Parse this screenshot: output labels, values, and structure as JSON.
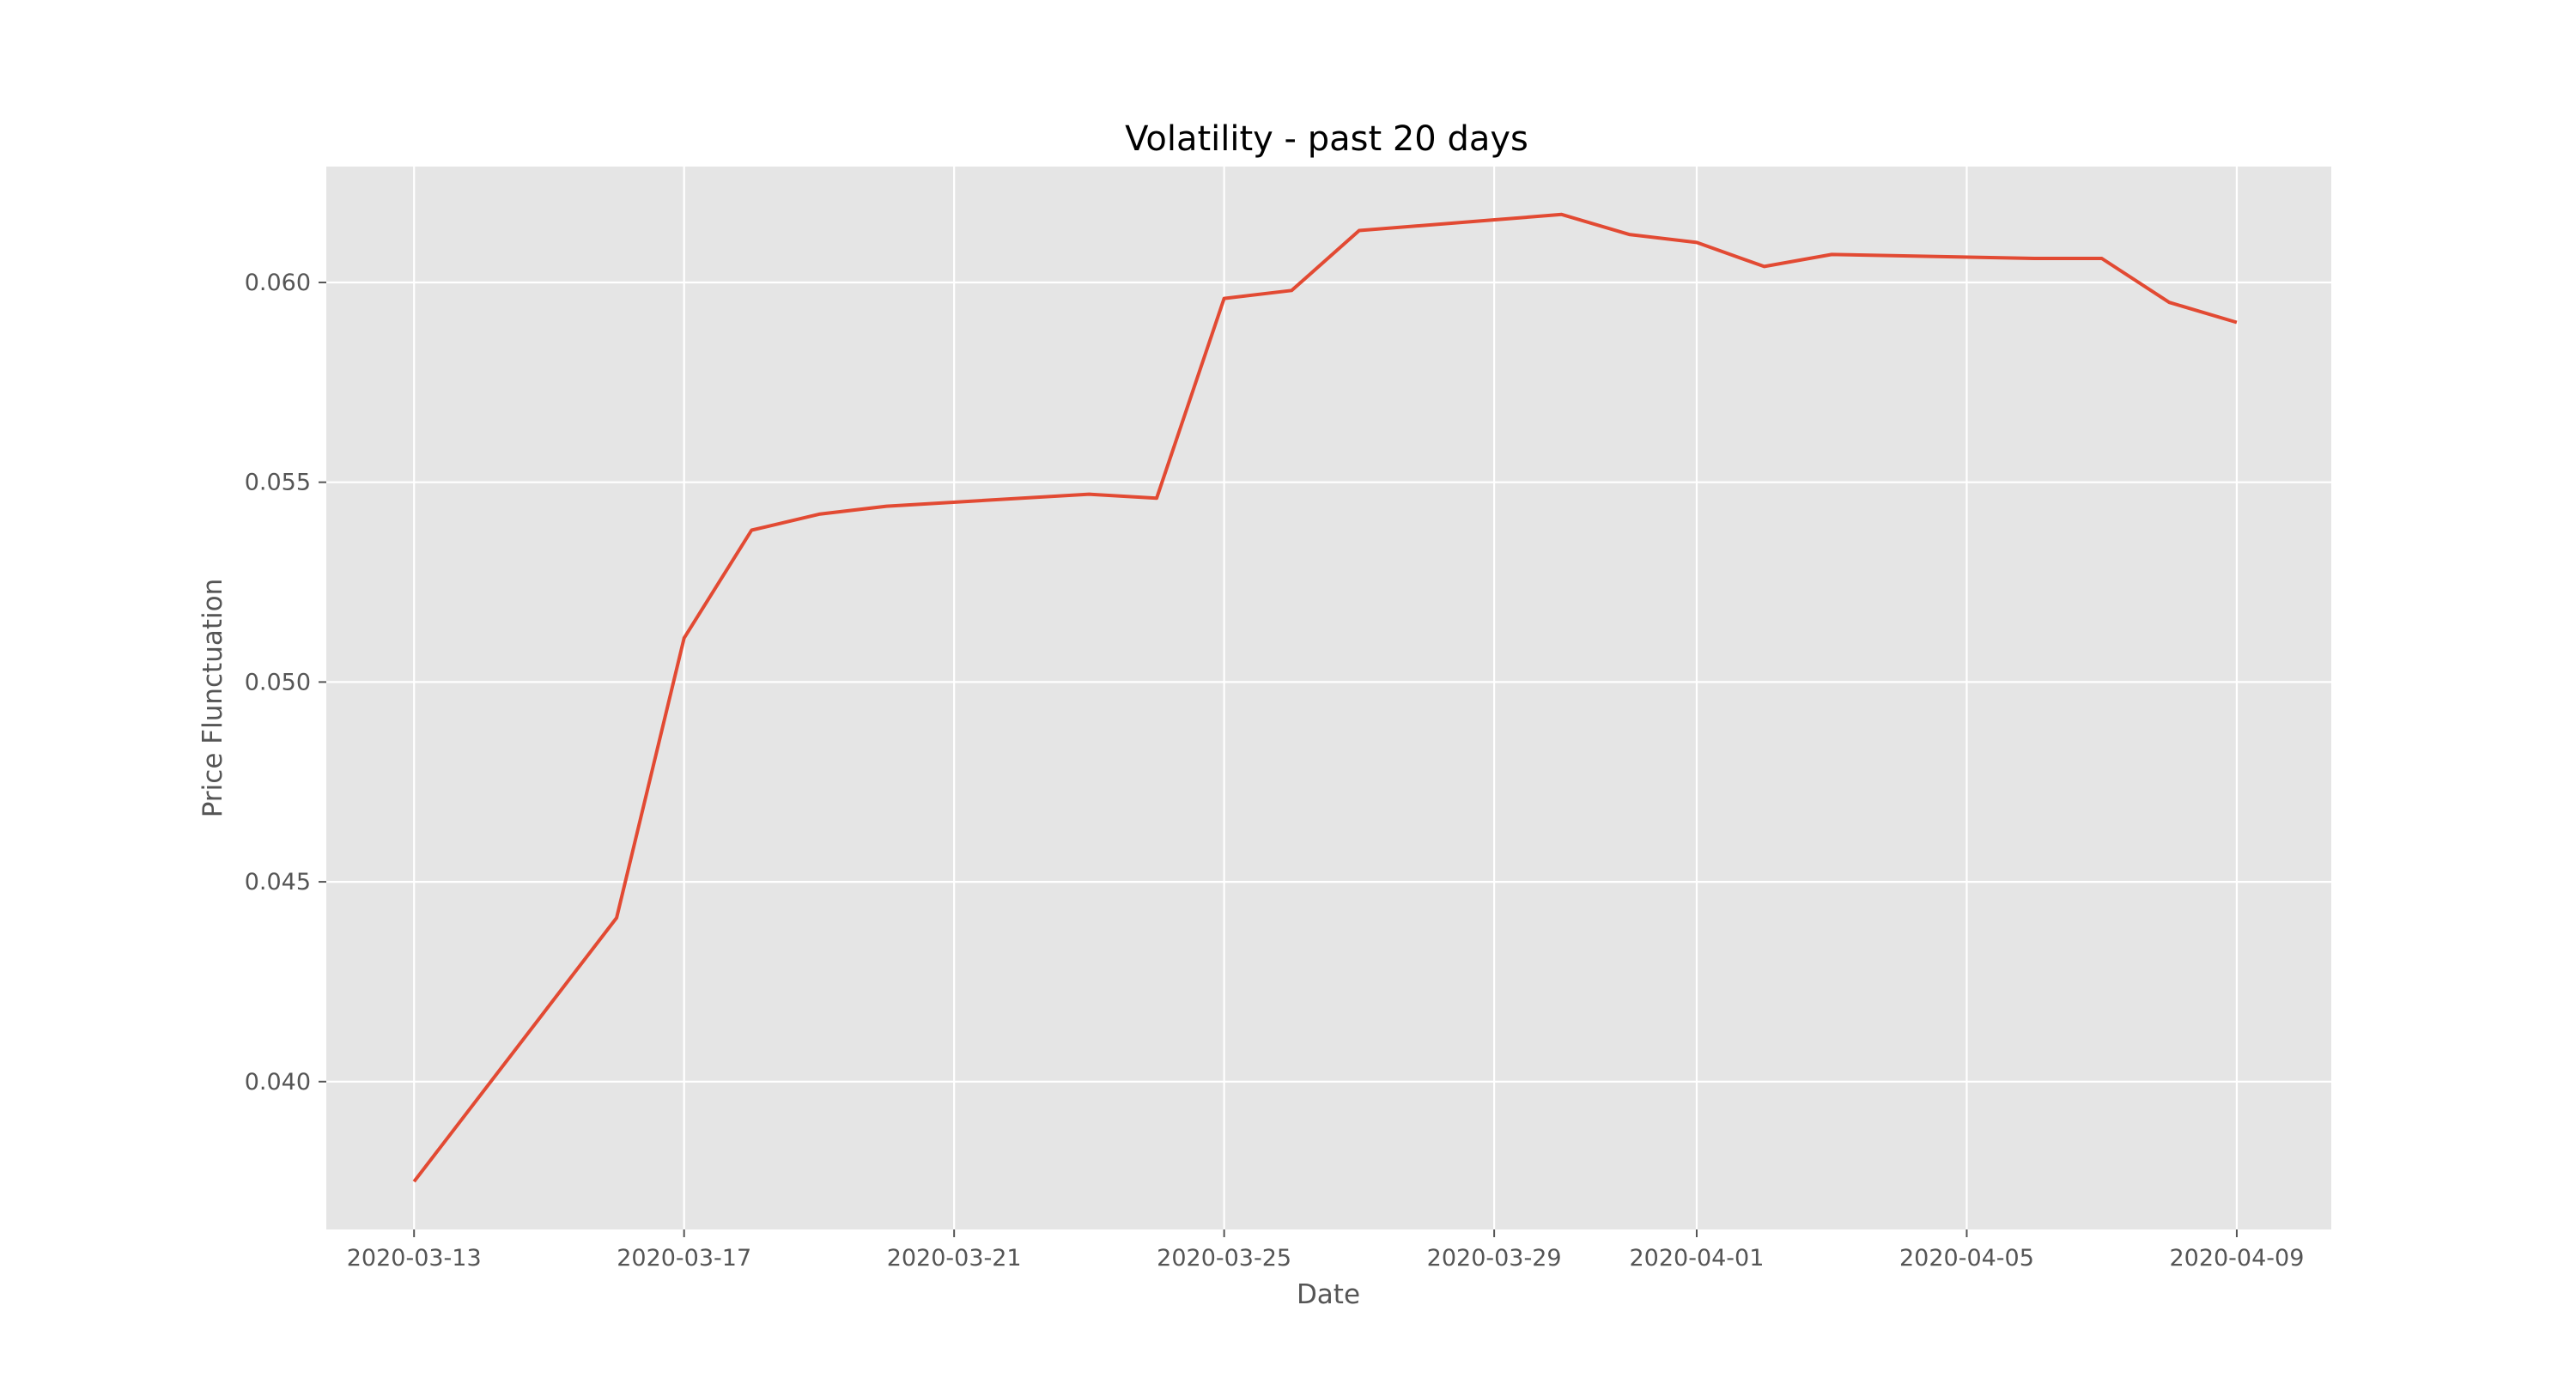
{
  "chart_data": {
    "type": "line",
    "title": "Volatility - past 20 days",
    "xlabel": "Date",
    "ylabel": "Price Flunctuation",
    "x_ticks": [
      "2020-03-13",
      "2020-03-17",
      "2020-03-21",
      "2020-03-25",
      "2020-03-29",
      "2020-04-01",
      "2020-04-05",
      "2020-04-09"
    ],
    "y_ticks": [
      "0.040",
      "0.045",
      "0.050",
      "0.055",
      "0.060"
    ],
    "xlim": [
      "2020-03-11.7",
      "2020-04-10.4"
    ],
    "ylim": [
      0.0363,
      0.0629
    ],
    "grid": true,
    "background": "#e5e5e5",
    "line_color": "#e24a33",
    "series": [
      {
        "x": [
          "2020-03-13",
          "2020-03-16",
          "2020-03-17",
          "2020-03-18",
          "2020-03-19",
          "2020-03-20",
          "2020-03-23",
          "2020-03-24",
          "2020-03-25",
          "2020-03-26",
          "2020-03-27",
          "2020-03-30",
          "2020-03-31",
          "2020-04-01",
          "2020-04-02",
          "2020-04-03",
          "2020-04-06",
          "2020-04-07",
          "2020-04-08",
          "2020-04-09"
        ],
        "y": [
          0.0375,
          0.0441,
          0.0511,
          0.0538,
          0.0542,
          0.0544,
          0.0547,
          0.0546,
          0.0596,
          0.0598,
          0.0613,
          0.0617,
          0.0612,
          0.061,
          0.0604,
          0.0607,
          0.0606,
          0.0606,
          0.0595,
          0.059
        ]
      }
    ]
  }
}
